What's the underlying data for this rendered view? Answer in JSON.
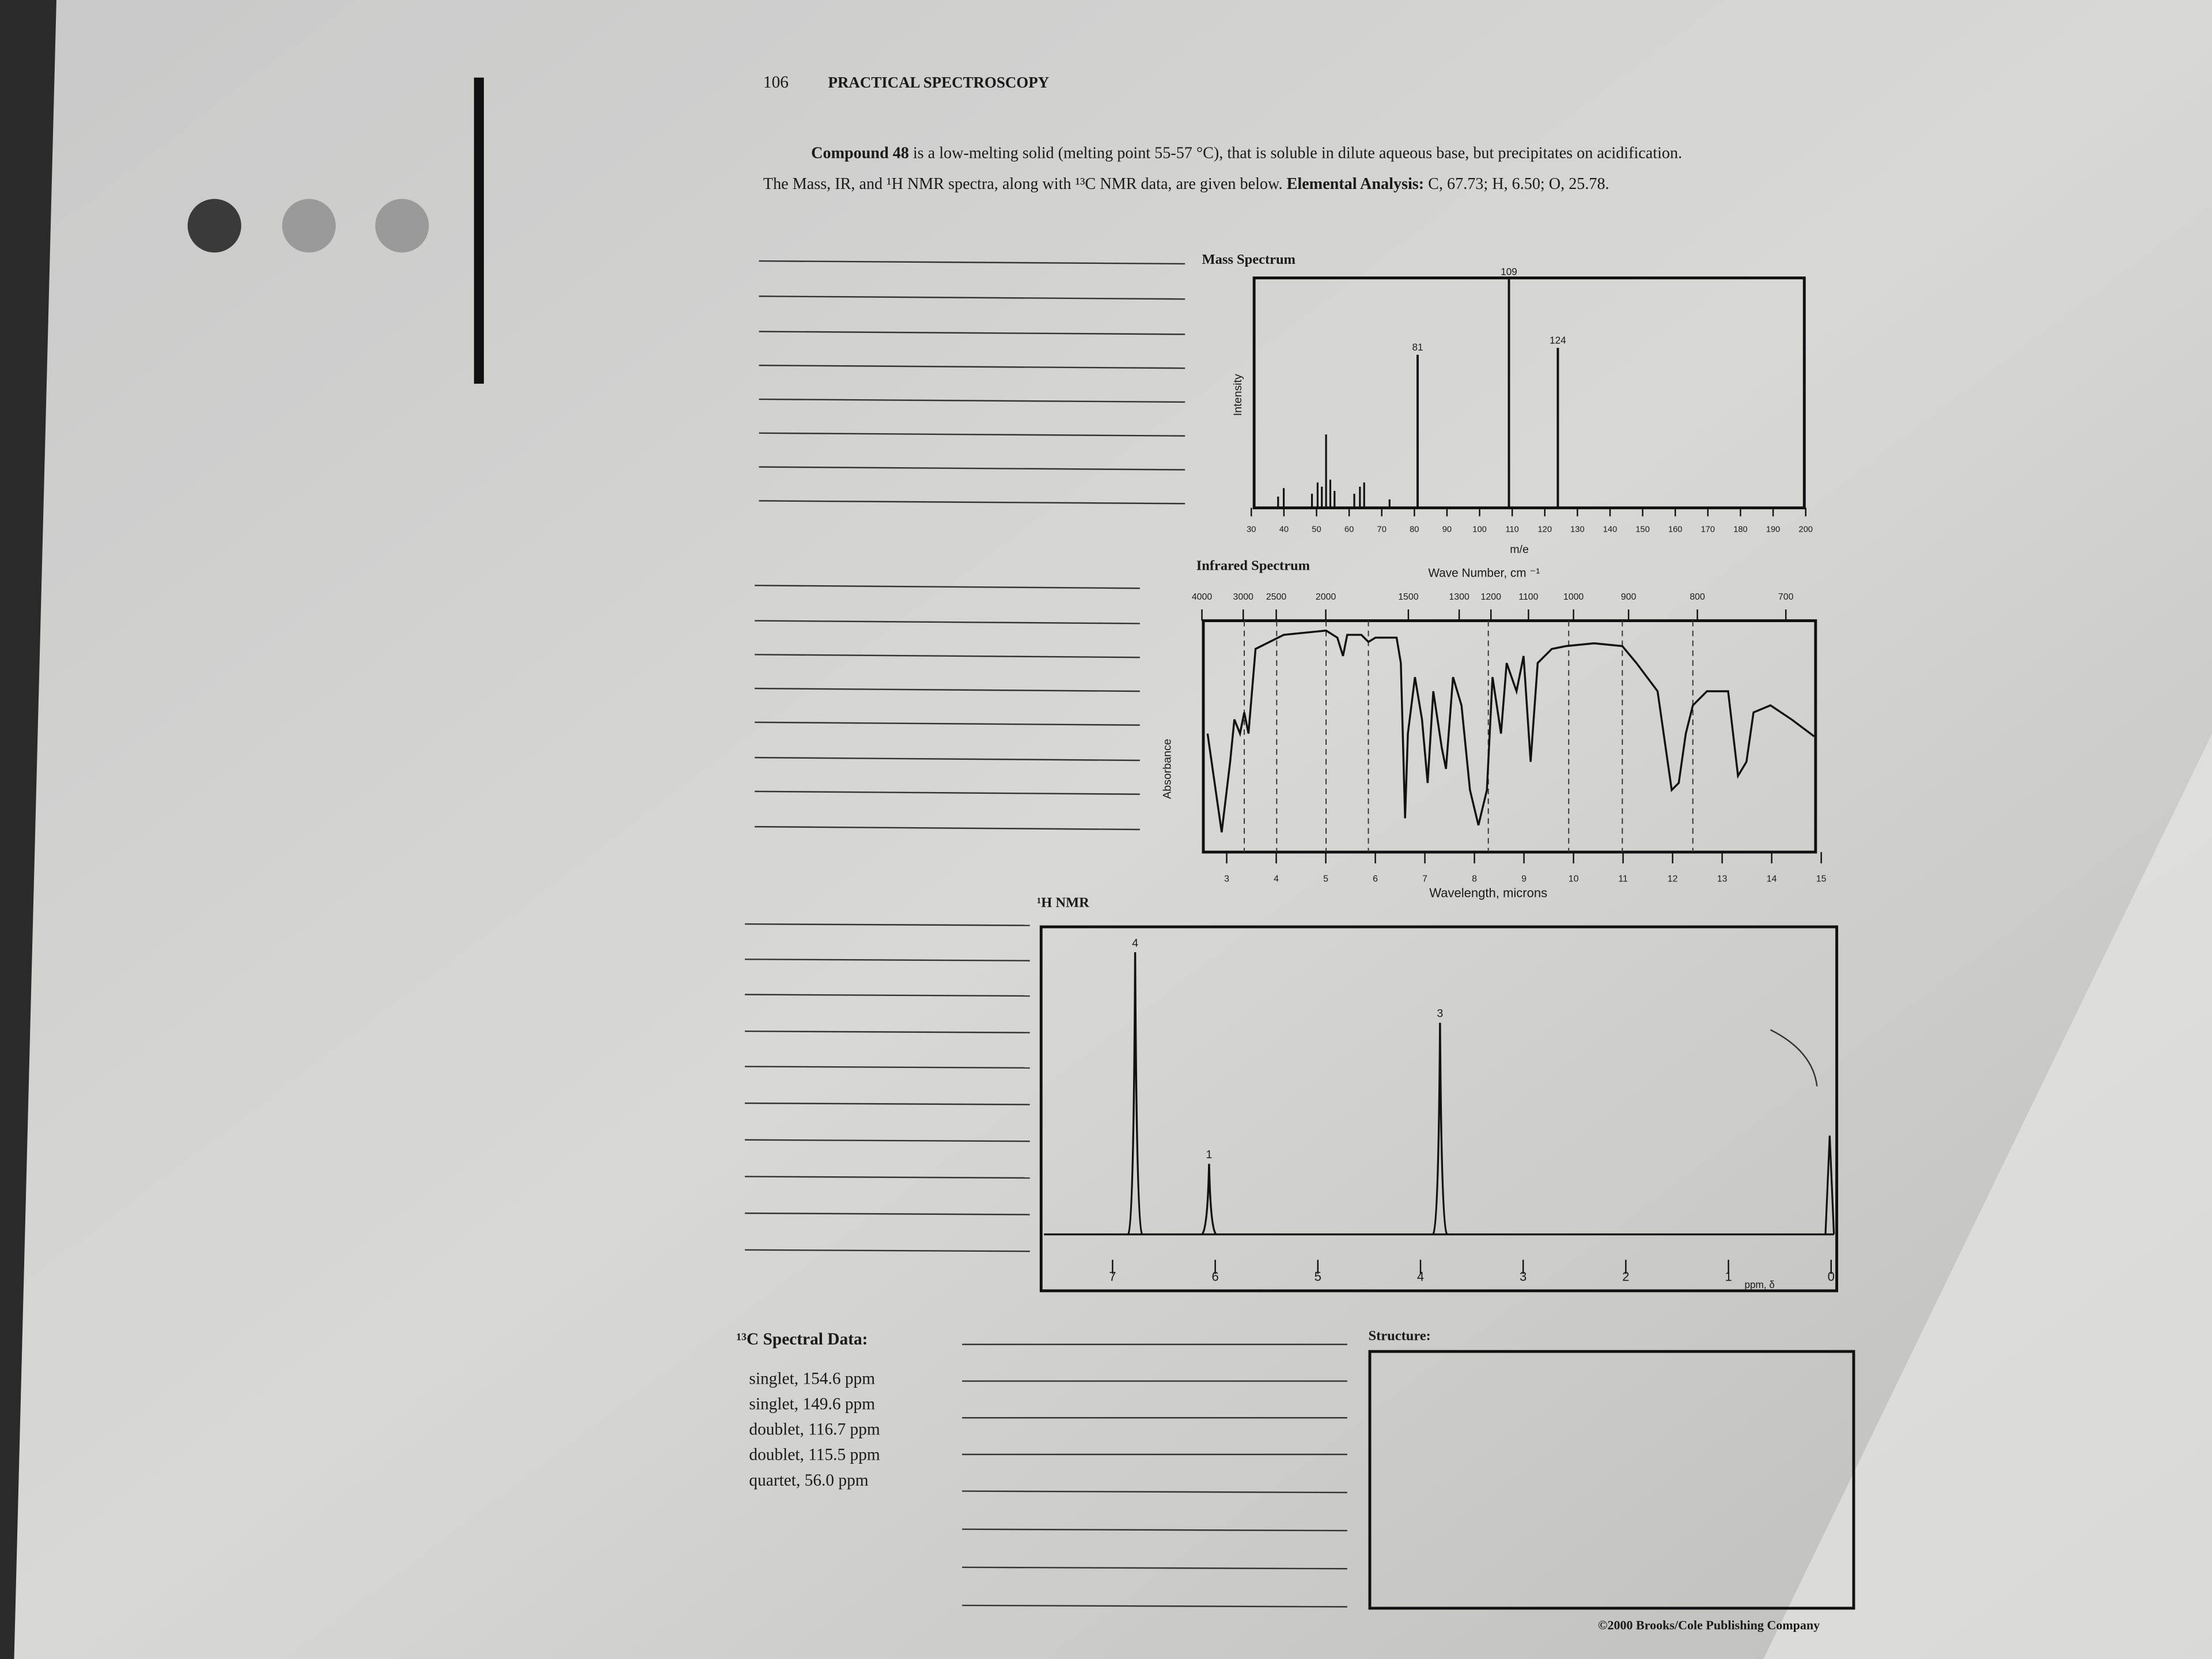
{
  "header": {
    "page_number": "106",
    "running_title": "PRACTICAL SPECTROSCOPY"
  },
  "intro": {
    "lead": "Compound 48",
    "line1": " is a low-melting solid (melting point 55-57 °C), that is soluble in dilute aqueous base, but precipitates on acidification.",
    "line2": "The Mass, IR, and ¹H NMR spectra, along with ¹³C NMR data, are given below. ",
    "analysis_label": "Elemental Analysis:",
    "analysis": " C, 67.73; H, 6.50; O, 25.78."
  },
  "mass_spectrum": {
    "title": "Mass Spectrum",
    "y_label": "Intensity",
    "x_label": "m/e",
    "xlim": [
      30,
      200
    ],
    "ylim": [
      0,
      100
    ],
    "xticks": [
      30,
      40,
      50,
      60,
      70,
      80,
      90,
      100,
      110,
      120,
      130,
      140,
      150,
      160,
      170,
      180,
      190,
      200
    ],
    "peaks": {
      "mz": [
        81,
        109,
        124
      ],
      "intensity": [
        67,
        100,
        70
      ]
    }
  },
  "ir_spectrum": {
    "title": "Infrared Spectrum",
    "top_label": "Wave Number, cm ⁻¹",
    "x_label": "Wavelength, microns",
    "y_label": "Absorbance",
    "xlim": [
      2.5,
      15
    ],
    "xticks": [
      3,
      4,
      5,
      6,
      7,
      8,
      9,
      10,
      11,
      12,
      13,
      14,
      15
    ],
    "wavenumber_ticks": [
      4000,
      3000,
      2500,
      2000,
      1500,
      1300,
      1200,
      1100,
      1000,
      900,
      800,
      700
    ]
  },
  "h_nmr": {
    "title": "¹H NMR",
    "x_label": "ppm, δ",
    "xlim": [
      7.6,
      0
    ],
    "xticks": [
      7,
      6,
      5,
      4,
      3,
      2,
      1,
      0
    ],
    "peaks": {
      "shift": [
        6.78,
        6.06,
        3.81
      ],
      "integration": [
        4,
        1,
        3
      ]
    }
  },
  "c13": {
    "title": "¹³C Spectral Data:",
    "lines": [
      "singlet, 154.6 ppm",
      "singlet, 149.6 ppm",
      "doublet, 116.7 ppm",
      "doublet, 115.5 ppm",
      "quartet, 56.0 ppm"
    ]
  },
  "structure": {
    "label": "Structure:"
  },
  "footer": {
    "copyright": "©2000 Brooks/Cole Publishing Company"
  }
}
